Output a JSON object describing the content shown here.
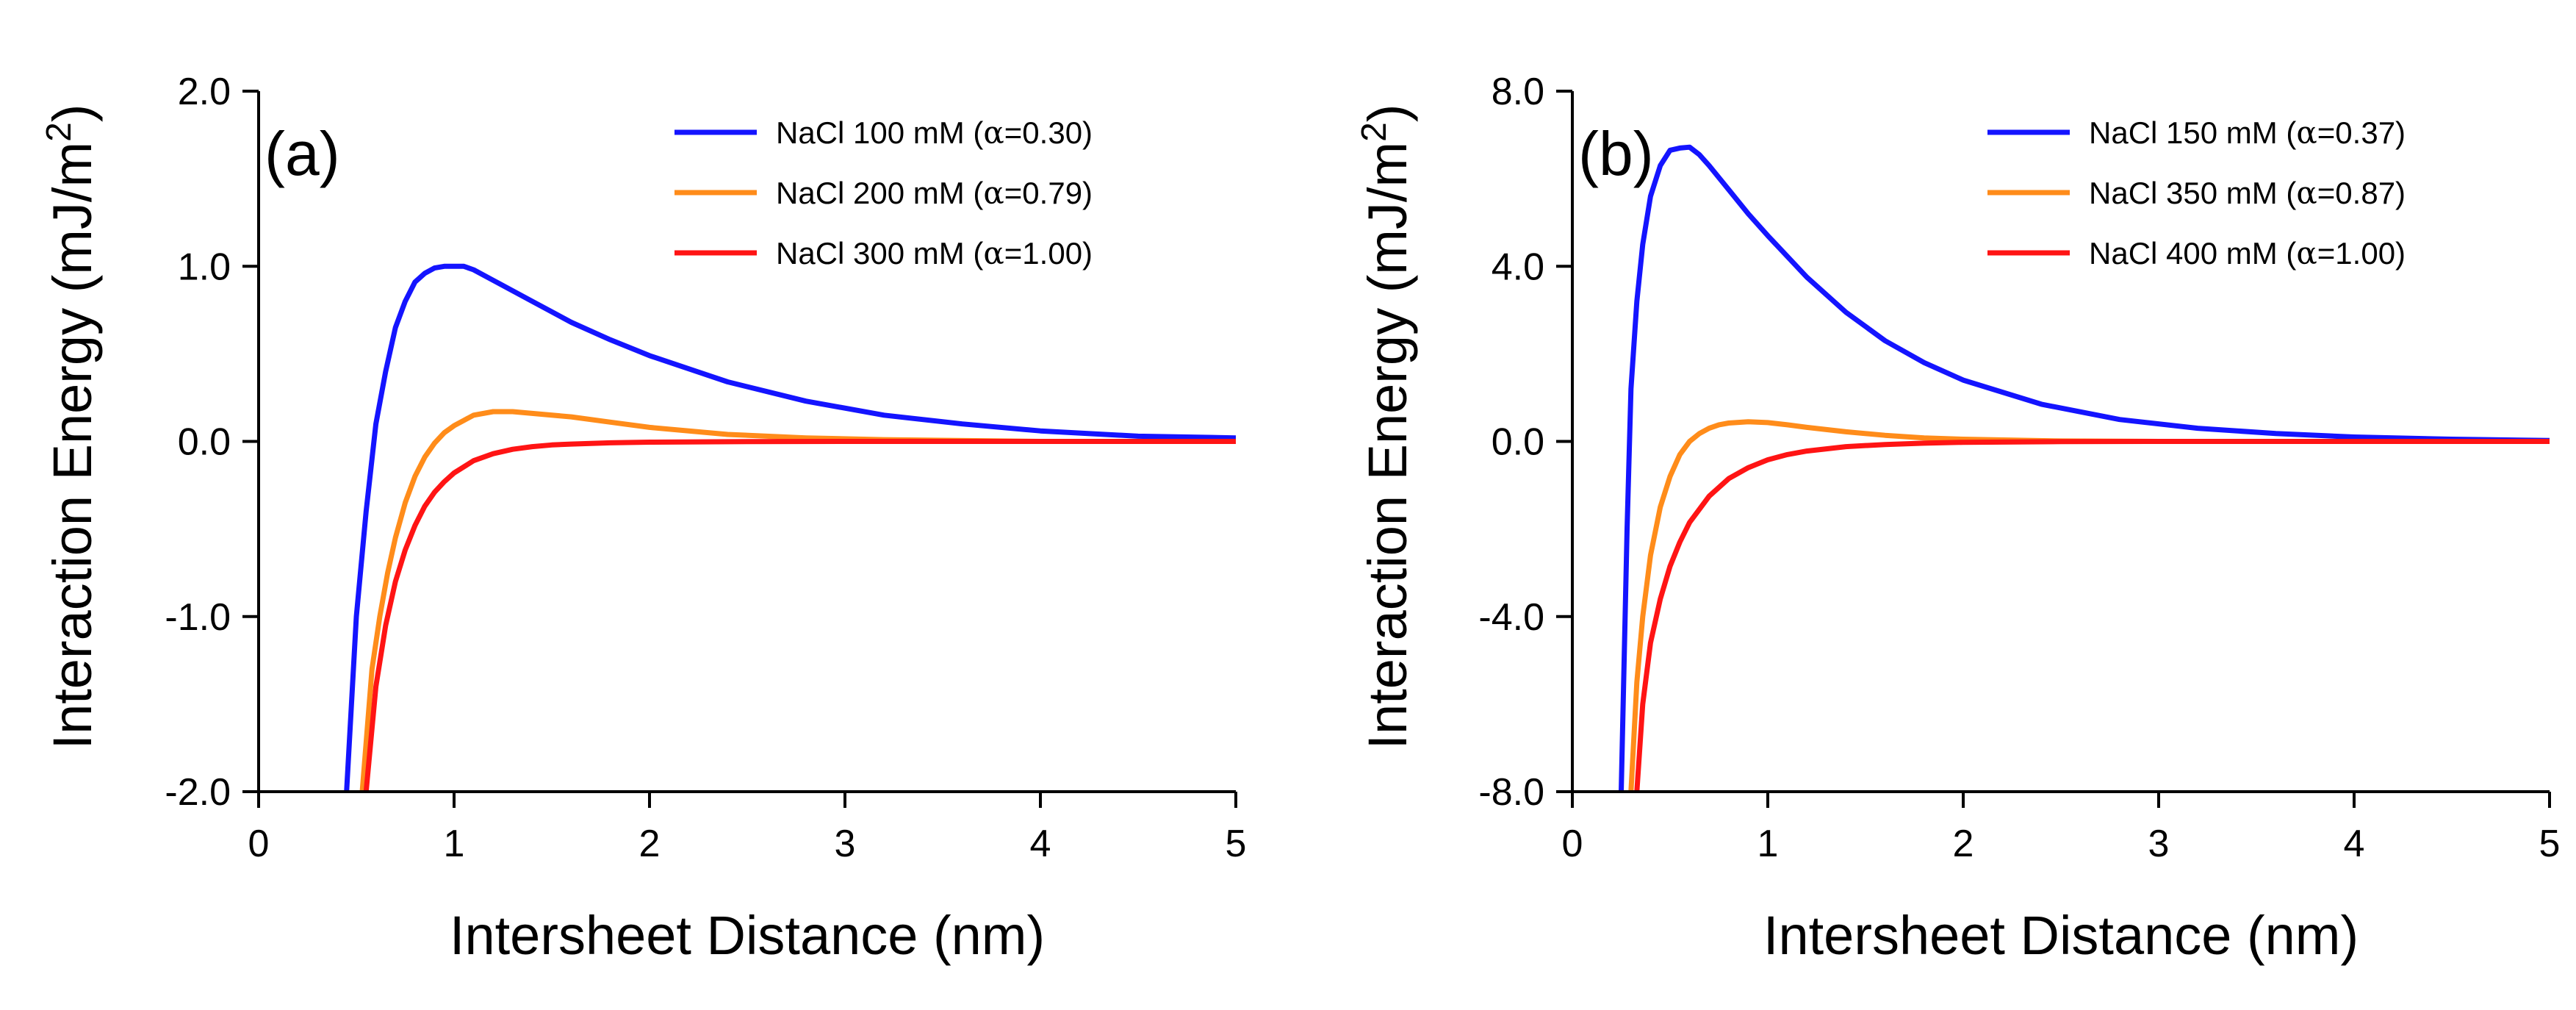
{
  "colors": {
    "blue": "#1414ff",
    "orange": "#ff8c1a",
    "red": "#ff1414",
    "axis": "#000000"
  },
  "chart_data": [
    {
      "type": "line",
      "panel_label": "(a)",
      "xlabel": "Intersheet Distance (nm)",
      "ylabel_main": "Interaction Energy (mJ/m",
      "ylabel_sup": "2",
      "ylabel_close": ")",
      "xlim": [
        0,
        5
      ],
      "ylim": [
        -2.0,
        2.0
      ],
      "xticks": [
        0,
        1,
        2,
        3,
        4,
        5
      ],
      "xtick_labels": [
        "0",
        "1",
        "2",
        "3",
        "4",
        "5"
      ],
      "yticks": [
        -2.0,
        -1.0,
        0.0,
        1.0,
        2.0
      ],
      "ytick_labels": [
        "-2.0",
        "-1.0",
        "0.0",
        "1.0",
        "2.0"
      ],
      "grid": false,
      "legend": "top-right",
      "series": [
        {
          "name": "NaCl 100 mM (α=0.30)",
          "label_pre": "NaCl 100 mM (",
          "label_greek": "α",
          "label_post": "=0.30)",
          "color": "blue",
          "x": [
            0.45,
            0.5,
            0.55,
            0.6,
            0.65,
            0.7,
            0.75,
            0.8,
            0.85,
            0.9,
            0.95,
            1.0,
            1.05,
            1.1,
            1.2,
            1.4,
            1.6,
            1.8,
            2.0,
            2.4,
            2.8,
            3.2,
            3.6,
            4.0,
            4.5,
            5.0
          ],
          "y": [
            -2.0,
            -1.0,
            -0.4,
            0.1,
            0.4,
            0.65,
            0.8,
            0.91,
            0.96,
            0.99,
            1.0,
            1.0,
            1.0,
            0.98,
            0.92,
            0.8,
            0.68,
            0.58,
            0.49,
            0.34,
            0.23,
            0.15,
            0.1,
            0.06,
            0.03,
            0.02
          ]
        },
        {
          "name": "NaCl 200 mM (α=0.79)",
          "label_pre": "NaCl 200 mM (",
          "label_greek": "α",
          "label_post": "=0.79)",
          "color": "orange",
          "x": [
            0.53,
            0.58,
            0.62,
            0.66,
            0.7,
            0.75,
            0.8,
            0.85,
            0.9,
            0.95,
            1.0,
            1.05,
            1.1,
            1.2,
            1.3,
            1.4,
            1.6,
            1.8,
            2.0,
            2.4,
            2.8,
            3.2,
            4.0,
            5.0
          ],
          "y": [
            -2.0,
            -1.3,
            -1.0,
            -0.75,
            -0.55,
            -0.35,
            -0.2,
            -0.09,
            -0.01,
            0.05,
            0.09,
            0.12,
            0.15,
            0.17,
            0.17,
            0.16,
            0.14,
            0.11,
            0.08,
            0.04,
            0.02,
            0.01,
            0.0,
            0.0
          ]
        },
        {
          "name": "NaCl 300 mM (α=1.00)",
          "label_pre": "NaCl 300 mM (",
          "label_greek": "α",
          "label_post": "=1.00)",
          "color": "red",
          "x": [
            0.55,
            0.6,
            0.65,
            0.7,
            0.75,
            0.8,
            0.85,
            0.9,
            0.95,
            1.0,
            1.1,
            1.2,
            1.3,
            1.4,
            1.5,
            1.6,
            1.8,
            2.0,
            2.5,
            3.0,
            4.0,
            5.0
          ],
          "y": [
            -2.0,
            -1.4,
            -1.05,
            -0.8,
            -0.62,
            -0.48,
            -0.37,
            -0.29,
            -0.23,
            -0.18,
            -0.11,
            -0.07,
            -0.045,
            -0.03,
            -0.02,
            -0.015,
            -0.008,
            -0.004,
            -0.001,
            0.0,
            0.0,
            0.0
          ]
        }
      ]
    },
    {
      "type": "line",
      "panel_label": "(b)",
      "xlabel": "Intersheet Distance (nm)",
      "ylabel_main": "Interaction Energy (mJ/m",
      "ylabel_sup": "2",
      "ylabel_close": ")",
      "xlim": [
        0,
        5
      ],
      "ylim": [
        -8.0,
        8.0
      ],
      "xticks": [
        0,
        1,
        2,
        3,
        4,
        5
      ],
      "xtick_labels": [
        "0",
        "1",
        "2",
        "3",
        "4",
        "5"
      ],
      "yticks": [
        -8.0,
        -4.0,
        0.0,
        4.0,
        8.0
      ],
      "ytick_labels": [
        "-8.0",
        "-4.0",
        "0.0",
        "4.0",
        "8.0"
      ],
      "grid": false,
      "legend": "top-right",
      "series": [
        {
          "name": "NaCl 150 mM (α=0.37)",
          "label_pre": "NaCl 150 mM (",
          "label_greek": "α",
          "label_post": "=0.37)",
          "color": "blue",
          "x": [
            0.25,
            0.28,
            0.3,
            0.33,
            0.36,
            0.4,
            0.45,
            0.5,
            0.55,
            0.6,
            0.65,
            0.7,
            0.8,
            0.9,
            1.0,
            1.2,
            1.4,
            1.6,
            1.8,
            2.0,
            2.4,
            2.8,
            3.2,
            3.6,
            4.0,
            4.5,
            5.0
          ],
          "y": [
            -8.0,
            -2.0,
            1.2,
            3.2,
            4.5,
            5.6,
            6.3,
            6.65,
            6.7,
            6.72,
            6.55,
            6.3,
            5.75,
            5.2,
            4.7,
            3.75,
            2.95,
            2.3,
            1.8,
            1.4,
            0.85,
            0.5,
            0.3,
            0.18,
            0.1,
            0.05,
            0.02
          ]
        },
        {
          "name": "NaCl 350 mM (α=0.87)",
          "label_pre": "NaCl 350 mM (",
          "label_greek": "α",
          "label_post": "=0.87)",
          "color": "orange",
          "x": [
            0.3,
            0.33,
            0.36,
            0.4,
            0.45,
            0.5,
            0.55,
            0.6,
            0.65,
            0.7,
            0.75,
            0.8,
            0.9,
            1.0,
            1.1,
            1.2,
            1.4,
            1.6,
            1.8,
            2.0,
            2.5,
            3.0,
            4.0,
            5.0
          ],
          "y": [
            -8.0,
            -5.5,
            -4.0,
            -2.6,
            -1.5,
            -0.8,
            -0.3,
            0.0,
            0.18,
            0.3,
            0.38,
            0.42,
            0.45,
            0.43,
            0.38,
            0.32,
            0.22,
            0.14,
            0.08,
            0.05,
            0.01,
            0.0,
            0.0,
            0.0
          ]
        },
        {
          "name": "NaCl 400 mM (α=1.00)",
          "label_pre": "NaCl 400 mM (",
          "label_greek": "α",
          "label_post": "=1.00)",
          "color": "red",
          "x": [
            0.33,
            0.36,
            0.4,
            0.45,
            0.5,
            0.55,
            0.6,
            0.7,
            0.8,
            0.9,
            1.0,
            1.1,
            1.2,
            1.4,
            1.6,
            1.8,
            2.0,
            2.5,
            3.0,
            4.0,
            5.0
          ],
          "y": [
            -8.0,
            -6.0,
            -4.6,
            -3.6,
            -2.85,
            -2.3,
            -1.85,
            -1.25,
            -0.85,
            -0.6,
            -0.42,
            -0.3,
            -0.22,
            -0.12,
            -0.07,
            -0.04,
            -0.02,
            -0.005,
            0.0,
            0.0,
            0.0
          ]
        }
      ]
    }
  ]
}
